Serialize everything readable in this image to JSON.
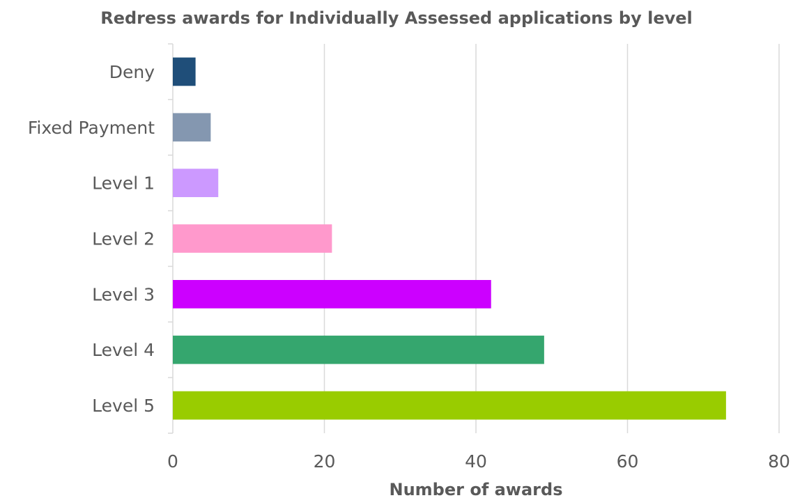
{
  "chart_data": {
    "type": "bar",
    "orientation": "horizontal",
    "title": "Redress awards for Individually Assessed applications by level",
    "xlabel": "Number of awards",
    "ylabel": "",
    "categories": [
      "Deny",
      "Fixed Payment",
      "Level 1",
      "Level 2",
      "Level 3",
      "Level 4",
      "Level 5"
    ],
    "values": [
      3,
      5,
      6,
      21,
      42,
      49,
      73
    ],
    "colors": [
      "#1f4e79",
      "#8497b0",
      "#cc99ff",
      "#ff99cc",
      "#cc00ff",
      "#35a66e",
      "#99cc00"
    ],
    "xlim": [
      0,
      80
    ],
    "xticks": [
      0,
      20,
      40,
      60,
      80
    ],
    "xtick_labels": [
      "0",
      "20",
      "40",
      "60",
      "80"
    ],
    "grid": true,
    "legend": "none"
  },
  "style": {
    "grid_color": "#d9d9d9",
    "axis_color": "#d9d9d9",
    "text_color": "#595959"
  }
}
